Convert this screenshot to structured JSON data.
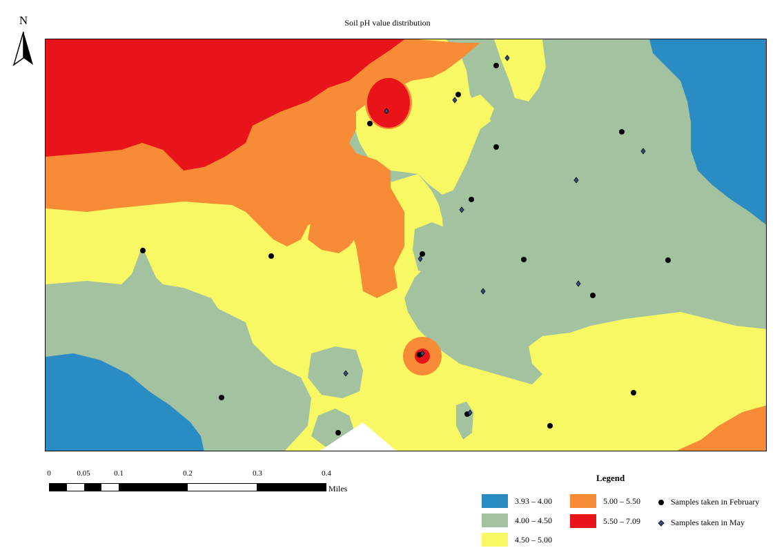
{
  "title": "Soil pH value distribution",
  "north_arrow": {
    "label": "N",
    "icon": "north-arrow-icon"
  },
  "scale_bar": {
    "ticks": [
      "0",
      "0.05",
      "0.1",
      "0.2",
      "0.3",
      "0.4"
    ],
    "unit": "Miles"
  },
  "legend": {
    "title": "Legend",
    "classes": [
      {
        "label": "3.93 – 4.00",
        "color": "#2b8cc4"
      },
      {
        "label": "4.00 – 4.50",
        "color": "#a3c2a0"
      },
      {
        "label": "4.50 – 5.00",
        "color": "#f8f864"
      },
      {
        "label": "5.00 – 5.50",
        "color": "#f78b36"
      },
      {
        "label": "5.50 – 7.09",
        "color": "#e8141a"
      }
    ],
    "samples": [
      {
        "label": "Samples taken in February",
        "icon": "black-dot-icon",
        "color": "#000000"
      },
      {
        "label": "Samples taken in May",
        "icon": "blue-diamond-icon",
        "color": "#2f4f7f"
      }
    ]
  }
}
